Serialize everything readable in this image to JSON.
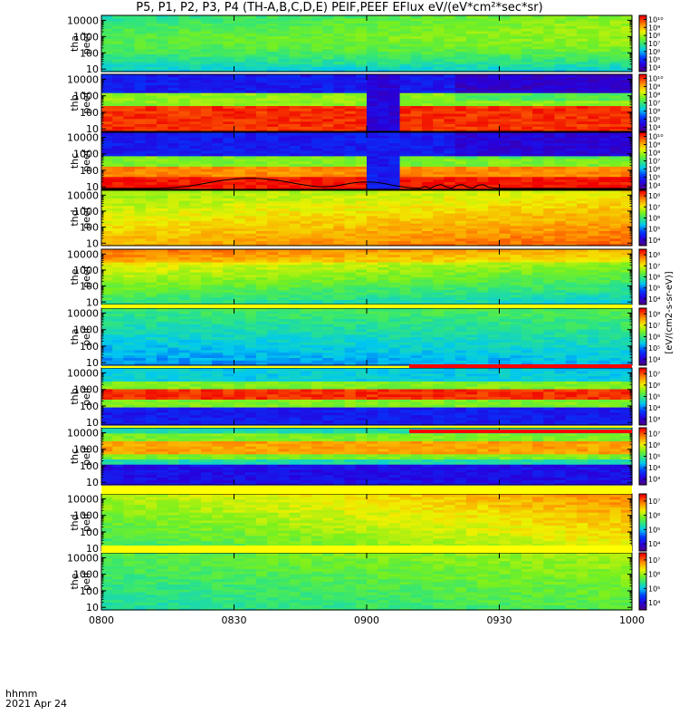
{
  "title": "P5, P1, P2, P3, P4 (TH-A,B,C,D,E) PEIF,PEEF EFlux eV/(eV*cm²*sec*sr)",
  "footer": {
    "time_label": "hhmm",
    "date_label": "2021 Apr 24"
  },
  "unit_label": "[eV/(cm2-s-sr-eV)]",
  "chart_data": {
    "type": "heatmap",
    "x_axis": {
      "range": [
        "0800",
        "1000"
      ],
      "ticks": [
        "0800",
        "0830",
        "0900",
        "0930",
        "1000"
      ]
    },
    "y_axis": {
      "scale": "log",
      "range": [
        7,
        20000
      ],
      "ticks": [
        "10",
        "100",
        "1000",
        "10000"
      ]
    },
    "panels": [
      {
        "probe": "tha",
        "product": "peef",
        "cbar": [
          "10⁴",
          "10⁵",
          "10⁶",
          "10⁷",
          "10⁸",
          "10⁹",
          "10¹⁰"
        ]
      },
      {
        "probe": "thb",
        "product": "peef",
        "cbar": [
          "10⁴",
          "10⁵",
          "10⁶",
          "10⁷",
          "10⁸",
          "10⁹",
          "10¹⁰"
        ]
      },
      {
        "probe": "thc",
        "product": "peef",
        "cbar": [
          "10⁴",
          "10⁵",
          "10⁶",
          "10⁷",
          "10⁸",
          "10⁹",
          "10¹⁰"
        ]
      },
      {
        "probe": "thd",
        "product": "peef",
        "cbar": [
          "10⁴",
          "10⁵",
          "10⁶",
          "10⁷",
          "10⁸"
        ]
      },
      {
        "probe": "the",
        "product": "peef",
        "cbar": [
          "10⁴",
          "10⁵",
          "10⁶",
          "10⁷",
          "10⁸"
        ]
      },
      {
        "probe": "tha",
        "product": "peif",
        "cbar": [
          "10⁴",
          "10⁵",
          "10⁶",
          "10⁷",
          "10⁸"
        ]
      },
      {
        "probe": "thb",
        "product": "peif",
        "cbar": [
          "10³",
          "10⁴",
          "10⁵",
          "10⁶",
          "10⁷"
        ]
      },
      {
        "probe": "thc",
        "product": "peif",
        "cbar": [
          "10³",
          "10⁴",
          "10⁵",
          "10⁶",
          "10⁷"
        ]
      },
      {
        "probe": "thd",
        "product": "peif",
        "cbar": [
          "10⁴",
          "10⁵",
          "10⁶",
          "10⁷"
        ]
      },
      {
        "probe": "the",
        "product": "peif",
        "cbar": [
          "10⁴",
          "10⁵",
          "10⁶",
          "10⁷"
        ]
      }
    ]
  }
}
